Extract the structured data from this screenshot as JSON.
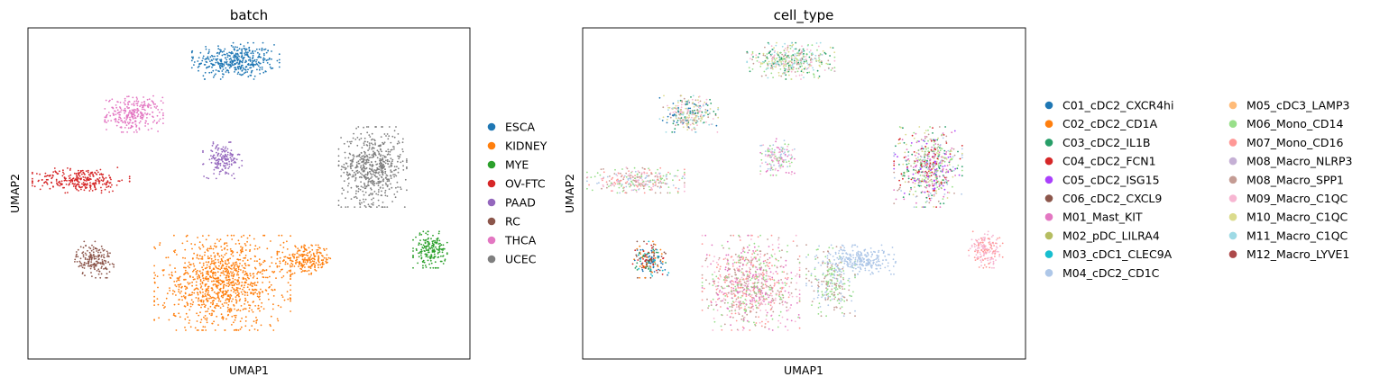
{
  "chart_data": [
    {
      "type": "scatter",
      "title": "batch",
      "xlabel": "UMAP1",
      "ylabel": "UMAP2",
      "ticks": "none",
      "legend": {
        "placement": "right",
        "columns": 1
      },
      "series": [
        {
          "name": "ESCA",
          "color": "#1f77b4"
        },
        {
          "name": "KIDNEY",
          "color": "#ff7f0e"
        },
        {
          "name": "MYE",
          "color": "#2ca02c"
        },
        {
          "name": "OV-FTC",
          "color": "#d62728"
        },
        {
          "name": "PAAD",
          "color": "#9467bd"
        },
        {
          "name": "RC",
          "color": "#8c564b"
        },
        {
          "name": "THCA",
          "color": "#e377c2"
        },
        {
          "name": "UCEC",
          "color": "#7f7f7f"
        }
      ],
      "clusters": [
        {
          "series": "ESCA",
          "center": [
            0.47,
            0.9
          ],
          "spread": [
            0.09,
            0.05
          ],
          "weight": 900
        },
        {
          "series": "THCA",
          "center": [
            0.24,
            0.74
          ],
          "spread": [
            0.06,
            0.05
          ],
          "weight": 600
        },
        {
          "series": "PAAD",
          "center": [
            0.44,
            0.6
          ],
          "spread": [
            0.04,
            0.05
          ],
          "weight": 350
        },
        {
          "series": "OV-FTC",
          "center": [
            0.12,
            0.54
          ],
          "spread": [
            0.1,
            0.035
          ],
          "weight": 650
        },
        {
          "series": "UCEC",
          "center": [
            0.78,
            0.58
          ],
          "spread": [
            0.07,
            0.11
          ],
          "weight": 1300
        },
        {
          "series": "RC",
          "center": [
            0.15,
            0.3
          ],
          "spread": [
            0.04,
            0.05
          ],
          "weight": 400
        },
        {
          "series": "KIDNEY",
          "center": [
            0.44,
            0.23
          ],
          "spread": [
            0.14,
            0.13
          ],
          "weight": 2300
        },
        {
          "series": "KIDNEY",
          "center": [
            0.63,
            0.3
          ],
          "spread": [
            0.06,
            0.04
          ],
          "weight": 500
        },
        {
          "series": "MYE",
          "center": [
            0.91,
            0.33
          ],
          "spread": [
            0.035,
            0.05
          ],
          "weight": 400
        }
      ]
    },
    {
      "type": "scatter",
      "title": "cell_type",
      "xlabel": "UMAP1",
      "ylabel": "UMAP2",
      "ticks": "none",
      "legend": {
        "placement": "right",
        "columns": 2
      },
      "series": [
        {
          "name": "C01_cDC2_CXCR4hi",
          "color": "#1f77b4"
        },
        {
          "name": "C02_cDC2_CD1A",
          "color": "#ff7f0e"
        },
        {
          "name": "C03_cDC2_IL1B",
          "color": "#279e68"
        },
        {
          "name": "C04_cDC2_FCN1",
          "color": "#d62728"
        },
        {
          "name": "C05_cDC2_ISG15",
          "color": "#aa40fc"
        },
        {
          "name": "C06_cDC2_CXCL9",
          "color": "#8c564b"
        },
        {
          "name": "M01_Mast_KIT",
          "color": "#e377c2"
        },
        {
          "name": "M02_pDC_LILRA4",
          "color": "#b5bd61"
        },
        {
          "name": "M03_cDC1_CLEC9A",
          "color": "#17becf"
        },
        {
          "name": "M04_cDC2_CD1C",
          "color": "#aec7e8"
        },
        {
          "name": "M05_cDC3_LAMP3",
          "color": "#ffbb78"
        },
        {
          "name": "M06_Mono_CD14",
          "color": "#98df8a"
        },
        {
          "name": "M07_Mono_CD16",
          "color": "#ff9896"
        },
        {
          "name": "M08_Macro_NLRP3",
          "color": "#c5b0d5"
        },
        {
          "name": "M08_Macro_SPP1",
          "color": "#c49c94"
        },
        {
          "name": "M09_Macro_C1QC",
          "color": "#f7b6d2"
        },
        {
          "name": "M10_Macro_C1QC",
          "color": "#dbdb8d"
        },
        {
          "name": "M11_Macro_C1QC",
          "color": "#9edae5"
        },
        {
          "name": "M12_Macro_LYVE1",
          "color": "#ad494a"
        }
      ],
      "clusters": [
        {
          "center": [
            0.47,
            0.9
          ],
          "spread": [
            0.09,
            0.05
          ],
          "weight": 900,
          "mix": [
            "M10_Macro_C1QC",
            "M06_Mono_CD14",
            "M09_Macro_C1QC",
            "C03_cDC2_IL1B",
            "M11_Macro_C1QC",
            "M08_Macro_SPP1"
          ]
        },
        {
          "center": [
            0.24,
            0.74
          ],
          "spread": [
            0.06,
            0.05
          ],
          "weight": 600,
          "mix": [
            "M08_Macro_SPP1",
            "C03_cDC2_IL1B",
            "M11_Macro_C1QC",
            "M09_Macro_C1QC",
            "C01_cDC2_CXCR4hi",
            "M10_Macro_C1QC"
          ]
        },
        {
          "center": [
            0.44,
            0.61
          ],
          "spread": [
            0.035,
            0.05
          ],
          "weight": 350,
          "mix": [
            "M09_Macro_C1QC",
            "M01_Mast_KIT",
            "M04_cDC2_CD1C",
            "M06_Mono_CD14"
          ]
        },
        {
          "center": [
            0.12,
            0.54
          ],
          "spread": [
            0.1,
            0.035
          ],
          "weight": 650,
          "mix": [
            "M08_Macro_SPP1",
            "M09_Macro_C1QC",
            "M07_Mono_CD16",
            "M06_Mono_CD14",
            "M04_cDC2_CD1C"
          ]
        },
        {
          "center": [
            0.78,
            0.58
          ],
          "spread": [
            0.07,
            0.11
          ],
          "weight": 1300,
          "mix": [
            "M06_Mono_CD14",
            "M08_Macro_SPP1",
            "M01_Mast_KIT",
            "C03_cDC2_IL1B",
            "M10_Macro_C1QC",
            "M04_cDC2_CD1C",
            "C04_cDC2_FCN1",
            "C05_cDC2_ISG15"
          ]
        },
        {
          "center": [
            0.15,
            0.3
          ],
          "spread": [
            0.04,
            0.05
          ],
          "weight": 400,
          "mix": [
            "C01_cDC2_CXCR4hi",
            "C03_cDC2_IL1B",
            "C04_cDC2_FCN1",
            "C02_cDC2_CD1A",
            "M03_cDC1_CLEC9A",
            "C06_cDC2_CXCL9"
          ]
        },
        {
          "center": [
            0.38,
            0.23
          ],
          "spread": [
            0.1,
            0.13
          ],
          "weight": 1900,
          "mix": [
            "M08_Macro_SPP1",
            "M07_Mono_CD16",
            "M01_Mast_KIT",
            "M09_Macro_C1QC",
            "M06_Mono_CD14"
          ]
        },
        {
          "center": [
            0.56,
            0.24
          ],
          "spread": [
            0.05,
            0.1
          ],
          "weight": 600,
          "mix": [
            "M04_cDC2_CD1C",
            "M06_Mono_CD14",
            "M08_Macro_SPP1"
          ]
        },
        {
          "center": [
            0.63,
            0.3
          ],
          "spread": [
            0.07,
            0.04
          ],
          "weight": 550,
          "mix": [
            "M04_cDC2_CD1C"
          ]
        },
        {
          "center": [
            0.91,
            0.33
          ],
          "spread": [
            0.035,
            0.05
          ],
          "weight": 400,
          "mix": [
            "M07_Mono_CD16",
            "M09_Macro_C1QC"
          ]
        }
      ]
    }
  ]
}
